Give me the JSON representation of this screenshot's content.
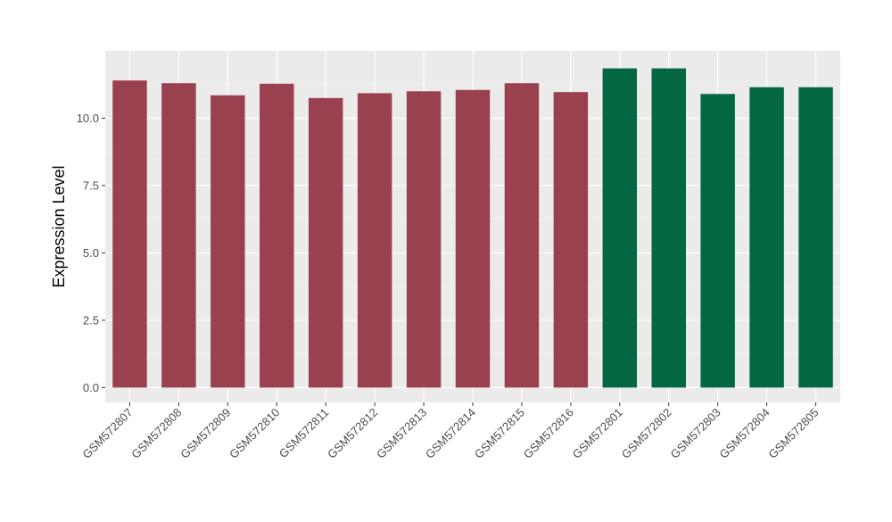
{
  "chart_data": {
    "type": "bar",
    "title": "",
    "xlabel": "",
    "ylabel": "Expression Level",
    "ylim": [
      -0.55,
      12.5
    ],
    "yticks": [
      0.0,
      2.5,
      5.0,
      7.5,
      10.0
    ],
    "ytick_labels": [
      "0.0",
      "2.5",
      "5.0",
      "7.5",
      "10.0"
    ],
    "grid": true,
    "categories": [
      "GSM572807",
      "GSM572808",
      "GSM572809",
      "GSM572810",
      "GSM572811",
      "GSM572812",
      "GSM572813",
      "GSM572814",
      "GSM572815",
      "GSM572816",
      "GSM572801",
      "GSM572802",
      "GSM572803",
      "GSM572804",
      "GSM572805"
    ],
    "values": [
      11.4,
      11.3,
      10.85,
      11.28,
      10.75,
      10.93,
      11.0,
      11.05,
      11.3,
      10.97,
      11.85,
      11.85,
      10.9,
      11.15,
      11.15
    ],
    "groups": [
      0,
      0,
      0,
      0,
      0,
      0,
      0,
      0,
      0,
      0,
      1,
      1,
      1,
      1,
      1
    ],
    "colors": {
      "group_a": "#9a4150",
      "group_b": "#036741",
      "panel": "#ebebeb",
      "grid_major": "#ffffff",
      "text": "#000000",
      "tick_text": "#4d4d4d"
    }
  }
}
